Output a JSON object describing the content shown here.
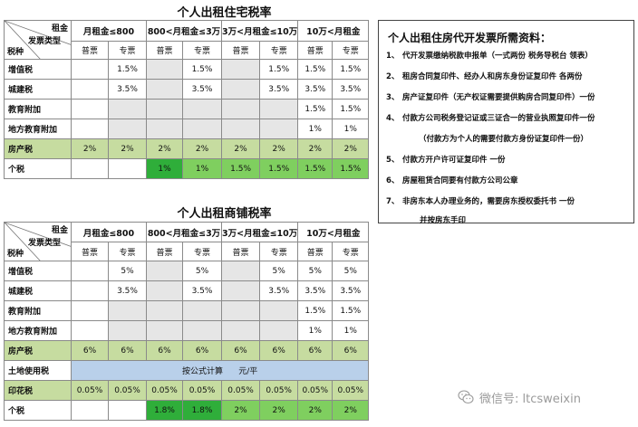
{
  "residential": {
    "title": "个人出租住宅税率",
    "corner": {
      "top": "租金",
      "middle": "发票类型",
      "bottom": "税种"
    },
    "ranges": [
      "月租金≤800",
      "800<月租金≤3万",
      "3万<月租金≤10万",
      "10万<月租金"
    ],
    "subheaders": [
      "普票",
      "专票",
      "普票",
      "专票",
      "普票",
      "专票",
      "普票",
      "专票"
    ],
    "rows": [
      {
        "label": "增值税",
        "cells": [
          "",
          "1.5%",
          "",
          "1.5%",
          "",
          "1.5%",
          "1.5%",
          "1.5%"
        ]
      },
      {
        "label": "城建税",
        "cells": [
          "",
          "3.5%",
          "",
          "3.5%",
          "",
          "3.5%",
          "3.5%",
          "3.5%"
        ]
      },
      {
        "label": "教育附加",
        "cells": [
          "",
          "",
          "",
          "",
          "",
          "",
          "1.5%",
          "1.5%"
        ]
      },
      {
        "label": "地方教育附加",
        "cells": [
          "",
          "",
          "",
          "",
          "",
          "",
          "1%",
          "1%"
        ]
      },
      {
        "label": "房产税",
        "cells": [
          "2%",
          "2%",
          "2%",
          "2%",
          "2%",
          "2%",
          "2%",
          "2%"
        ]
      },
      {
        "label": "个税",
        "cells": [
          "",
          "",
          "1%",
          "1%",
          "1.5%",
          "1.5%",
          "1.5%",
          "1.5%"
        ]
      }
    ]
  },
  "commercial": {
    "title": "个人出租商铺税率",
    "corner": {
      "top": "租金",
      "middle": "发票类型",
      "bottom": "税种"
    },
    "ranges": [
      "月租金≤800",
      "800<月租金≤3万",
      "3万<月租金≤10万",
      "10万<月租金"
    ],
    "subheaders": [
      "普票",
      "专票",
      "普票",
      "专票",
      "普票",
      "专票",
      "普票",
      "专票"
    ],
    "rows": [
      {
        "label": "增值税",
        "cells": [
          "",
          "5%",
          "",
          "5%",
          "",
          "5%",
          "5%",
          "5%"
        ]
      },
      {
        "label": "城建税",
        "cells": [
          "",
          "3.5%",
          "",
          "3.5%",
          "",
          "3.5%",
          "3.5%",
          "3.5%"
        ]
      },
      {
        "label": "教育附加",
        "cells": [
          "",
          "",
          "",
          "",
          "",
          "",
          "1.5%",
          "1.5%"
        ]
      },
      {
        "label": "地方教育附加",
        "cells": [
          "",
          "",
          "",
          "",
          "",
          "",
          "1%",
          "1%"
        ]
      },
      {
        "label": "房产税",
        "cells": [
          "6%",
          "6%",
          "6%",
          "6%",
          "6%",
          "6%",
          "6%",
          "6%"
        ]
      },
      {
        "label": "土地使用税",
        "merged": "按公式计算      元/平"
      },
      {
        "label": "印花税",
        "cells": [
          "0.05%",
          "0.05%",
          "0.05%",
          "0.05%",
          "0.05%",
          "0.05%",
          "0.05%",
          "0.05%"
        ]
      },
      {
        "label": "个税",
        "cells": [
          "",
          "",
          "1.8%",
          "1.8%",
          "2%",
          "2%",
          "2%",
          "2%"
        ]
      }
    ]
  },
  "documents": {
    "title": "个人出租住房代开发票所需资料：",
    "items": [
      {
        "num": "1、",
        "text": "代开发票缴纳税款申报单（一式两份  税务导税台  领表）"
      },
      {
        "num": "2、",
        "text": "租房合同复印件、经办人和房东身份证复印件  各两份"
      },
      {
        "num": "3、",
        "text": "房产证复印件（无产权证需要提供购房合同复印件）一份"
      },
      {
        "num": "4、",
        "text": "付款方公司税务登记证或三证合一的营业执照复印件一份"
      },
      {
        "num": "",
        "text": "（付款方为个人的需要付款方身份证复印件一份）"
      },
      {
        "num": "5、",
        "text": "付款方开户许可证复印件  一份"
      },
      {
        "num": "6、",
        "text": "房屋租赁合同要有付款方公司公章"
      },
      {
        "num": "7、",
        "text": "非房东本人办理业务的，需要房东授权委托书  一份"
      },
      {
        "num": "",
        "text": "并按房东手印"
      }
    ]
  },
  "watermark": {
    "label": "微信号: ltcsweixin",
    "icon": "wechat-icon"
  },
  "colors": {
    "gray": "#e6e6e6",
    "olive": "#c6dca0",
    "green": "#7fcf5f",
    "dark_green": "#2fae3a",
    "blue": "#b9d0ea"
  }
}
